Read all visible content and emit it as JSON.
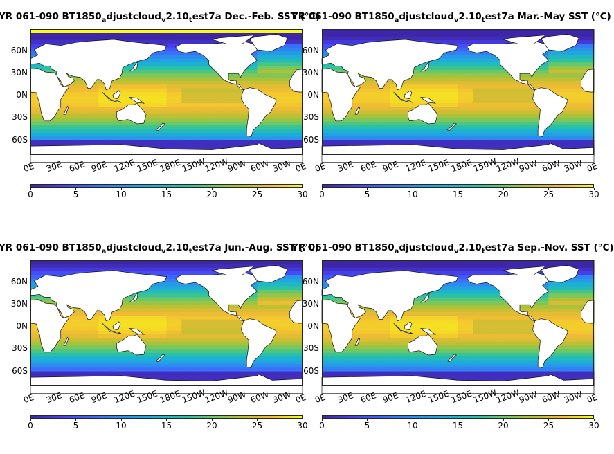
{
  "panels": [
    {
      "title_pre": "YR 061-090 BT1850",
      "sub1": "a",
      "mid1": "djustcloud",
      "sub2": "v",
      "mid2": "2.10",
      "sub3": "t",
      "post": "est7a Dec.-Feb. SST (°C)",
      "season": "DJF"
    },
    {
      "title_pre": "YR 061-090 BT1850",
      "sub1": "a",
      "mid1": "djustcloud",
      "sub2": "v",
      "mid2": "2.10",
      "sub3": "t",
      "post": "est7a Mar.-May SST (°C)",
      "season": "MAM"
    },
    {
      "title_pre": "YR 061-090 BT1850",
      "sub1": "a",
      "mid1": "djustcloud",
      "sub2": "v",
      "mid2": "2.10",
      "sub3": "t",
      "post": "est7a Jun.-Aug. SST (°C)",
      "season": "JJA"
    },
    {
      "title_pre": "YR 061-090 BT1850",
      "sub1": "a",
      "mid1": "djustcloud",
      "sub2": "v",
      "mid2": "2.10",
      "sub3": "t",
      "post": "est7a Sep.-Nov. SST (°C)",
      "season": "SON"
    }
  ],
  "lat_labels": [
    "60N",
    "30N",
    "0N",
    "30S",
    "60S"
  ],
  "lon_labels": [
    "0E",
    "30E",
    "60E",
    "90E",
    "120E",
    "150E",
    "180E",
    "150W",
    "120W",
    "90W",
    "60W",
    "30W",
    "0E"
  ],
  "colorbar": {
    "ticks": [
      "0",
      "5",
      "10",
      "15",
      "20",
      "25",
      "30"
    ],
    "min": 0,
    "max": 30,
    "colormap": "parula"
  },
  "colors": {
    "cold": "#3e26a8",
    "cool": "#2797eb",
    "mid": "#2bc2a0",
    "warm": "#f1bb35",
    "hot": "#f9fb15",
    "land": "#ffffff"
  }
}
